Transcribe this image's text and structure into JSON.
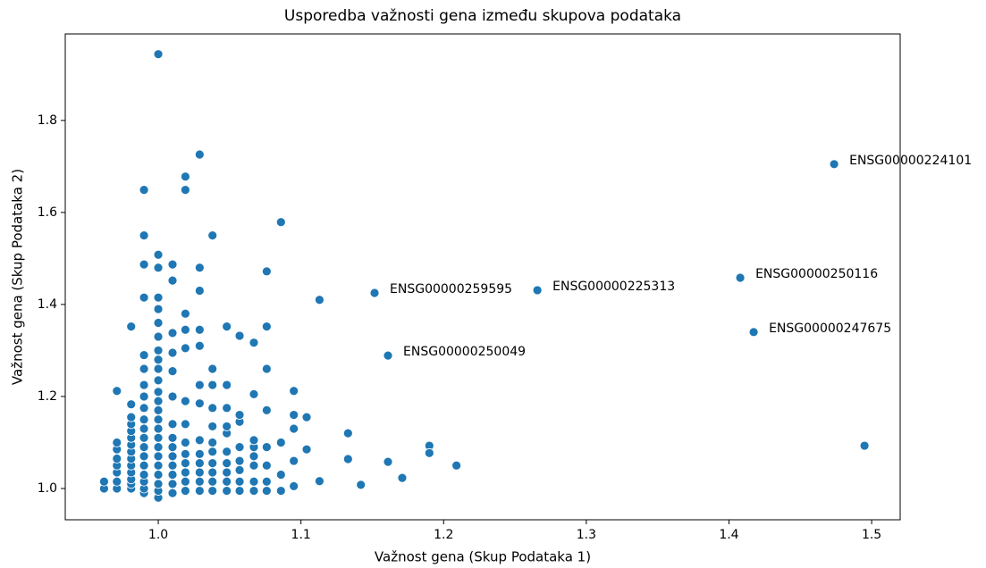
{
  "chart_data": {
    "type": "scatter",
    "title": "Usporedba važnosti gena između skupova podataka",
    "x_label": "Važnost gena (Skup Podataka 1)",
    "y_label": "Važnost gena (Skup Podataka 2)",
    "color": "#1f77b4",
    "xlim": [
      0.9348,
      1.52
    ],
    "ylim": [
      0.932,
      1.988
    ],
    "xticks": [
      {
        "value": 1,
        "label": "1.0"
      },
      1.1,
      1.2,
      1.3,
      1.4,
      1.5
    ],
    "yticks": [
      {
        "value": 1,
        "label": "1.0"
      },
      1.2,
      1.4,
      1.6,
      1.8
    ],
    "x": [
      0.962,
      0.962,
      0.971,
      0.971,
      0.971,
      0.971,
      0.971,
      0.971,
      0.971,
      0.971,
      0.981,
      0.981,
      0.981,
      0.981,
      0.981,
      0.981,
      0.981,
      0.981,
      0.981,
      0.981,
      0.981,
      0.981,
      0.981,
      0.981,
      0.99,
      0.99,
      0.99,
      0.99,
      0.99,
      0.99,
      0.99,
      0.99,
      0.99,
      0.99,
      0.99,
      0.99,
      0.99,
      0.99,
      0.99,
      0.99,
      0.99,
      0.99,
      0.99,
      1.0,
      1.0,
      1.0,
      1.0,
      1.0,
      1.0,
      1.0,
      1.0,
      1.0,
      1.0,
      1.0,
      1.0,
      1.0,
      1.0,
      1.0,
      1.0,
      1.0,
      1.0,
      1.0,
      1.0,
      1.0,
      1.0,
      1.0,
      1.0,
      1.01,
      1.01,
      1.01,
      1.01,
      1.01,
      1.01,
      1.01,
      1.01,
      1.01,
      1.01,
      1.01,
      1.01,
      1.01,
      1.01,
      1.019,
      1.019,
      1.019,
      1.019,
      1.019,
      1.019,
      1.019,
      1.019,
      1.019,
      1.019,
      1.019,
      1.019,
      1.019,
      1.029,
      1.029,
      1.029,
      1.029,
      1.029,
      1.029,
      1.029,
      1.029,
      1.029,
      1.029,
      1.029,
      1.029,
      1.029,
      1.038,
      1.038,
      1.038,
      1.038,
      1.038,
      1.038,
      1.038,
      1.038,
      1.038,
      1.038,
      1.038,
      1.048,
      1.048,
      1.048,
      1.048,
      1.048,
      1.048,
      1.048,
      1.048,
      1.048,
      1.048,
      1.057,
      1.057,
      1.057,
      1.057,
      1.057,
      1.057,
      1.057,
      1.057,
      1.067,
      1.067,
      1.067,
      1.067,
      1.067,
      1.067,
      1.067,
      1.067,
      1.076,
      1.076,
      1.076,
      1.076,
      1.076,
      1.076,
      1.076,
      1.076,
      1.086,
      1.086,
      1.086,
      1.086,
      1.095,
      1.095,
      1.095,
      1.095,
      1.095,
      1.104,
      1.104,
      1.113,
      1.113,
      1.133,
      1.133,
      1.142,
      1.1516,
      1.161,
      1.161,
      1.171,
      1.19,
      1.19,
      1.209,
      1.2657,
      1.4079,
      1.4173,
      1.4737,
      1.495
    ],
    "y": [
      1.0,
      1.015,
      1.0,
      1.015,
      1.035,
      1.05,
      1.065,
      1.085,
      1.1,
      1.212,
      1.0,
      1.01,
      1.02,
      1.035,
      1.05,
      1.065,
      1.08,
      1.095,
      1.11,
      1.125,
      1.14,
      1.155,
      1.183,
      1.352,
      0.99,
      1.0,
      1.015,
      1.03,
      1.05,
      1.07,
      1.09,
      1.11,
      1.13,
      1.15,
      1.175,
      1.2,
      1.225,
      1.26,
      1.29,
      1.415,
      1.487,
      1.55,
      1.649,
      0.98,
      0.995,
      1.01,
      1.03,
      1.05,
      1.07,
      1.09,
      1.11,
      1.13,
      1.15,
      1.17,
      1.19,
      1.21,
      1.235,
      1.26,
      1.28,
      1.3,
      1.33,
      1.36,
      1.39,
      1.415,
      1.48,
      1.508,
      1.944,
      0.99,
      1.01,
      1.03,
      1.05,
      1.07,
      1.09,
      1.11,
      1.14,
      1.2,
      1.255,
      1.295,
      1.338,
      1.452,
      1.487,
      0.995,
      1.015,
      1.035,
      1.055,
      1.075,
      1.1,
      1.14,
      1.19,
      1.305,
      1.345,
      1.38,
      1.649,
      1.678,
      0.995,
      1.015,
      1.035,
      1.055,
      1.075,
      1.105,
      1.185,
      1.225,
      1.31,
      1.345,
      1.43,
      1.48,
      1.726,
      0.995,
      1.015,
      1.035,
      1.055,
      1.08,
      1.1,
      1.135,
      1.175,
      1.225,
      1.26,
      1.55,
      0.995,
      1.015,
      1.035,
      1.055,
      1.08,
      1.12,
      1.135,
      1.175,
      1.225,
      1.352,
      0.995,
      1.015,
      1.04,
      1.06,
      1.09,
      1.145,
      1.16,
      1.332,
      0.995,
      1.015,
      1.05,
      1.07,
      1.09,
      1.105,
      1.205,
      1.317,
      0.995,
      1.015,
      1.05,
      1.09,
      1.17,
      1.26,
      1.352,
      1.472,
      0.995,
      1.03,
      1.1,
      1.579,
      1.005,
      1.06,
      1.13,
      1.16,
      1.212,
      1.155,
      1.085,
      1.41,
      1.016,
      1.12,
      1.064,
      1.008,
      1.425,
      1.289,
      1.058,
      1.023,
      1.093,
      1.077,
      1.05,
      1.431,
      1.458,
      1.34,
      1.705,
      1.093
    ],
    "annotations": [
      {
        "text": "ENSG00000224101",
        "x": 1.4737,
        "y": 1.705
      },
      {
        "text": "ENSG00000259595",
        "x": 1.1516,
        "y": 1.425
      },
      {
        "text": "ENSG00000225313",
        "x": 1.2657,
        "y": 1.431
      },
      {
        "text": "ENSG00000250116",
        "x": 1.4079,
        "y": 1.458
      },
      {
        "text": "ENSG00000247675",
        "x": 1.4173,
        "y": 1.34
      },
      {
        "text": "ENSG00000250049",
        "x": 1.161,
        "y": 1.289
      }
    ]
  }
}
